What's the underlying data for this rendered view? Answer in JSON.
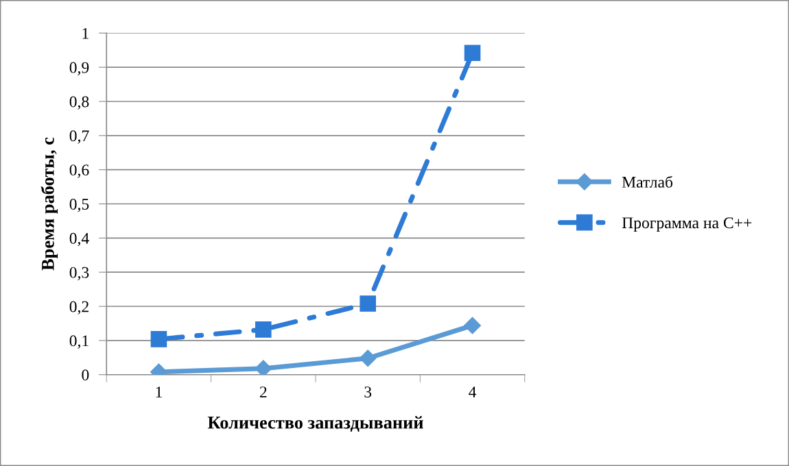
{
  "chart_data": {
    "type": "line",
    "xlabel": "Количество запаздываний",
    "ylabel": "Время работы, с",
    "categories": [
      "1",
      "2",
      "3",
      "4"
    ],
    "series": [
      {
        "name": "Матлаб",
        "color": "#5b9bd5",
        "values": [
          0.008,
          0.018,
          0.048,
          0.144
        ],
        "marker": "diamond",
        "line_style": "solid"
      },
      {
        "name": "Программа на С++",
        "color": "#2e7bd6",
        "values": [
          0.104,
          0.132,
          0.208,
          0.942
        ],
        "marker": "square",
        "line_style": "dashdot"
      }
    ],
    "ylim": [
      0,
      1
    ],
    "yticks": [
      0,
      {
        "value": 0.1,
        "label": "0,1"
      },
      {
        "value": 0.2,
        "label": "0,2"
      },
      {
        "value": 0.3,
        "label": "0,3"
      },
      {
        "value": 0.4,
        "label": "0,4"
      },
      {
        "value": 0.5,
        "label": "0,5"
      },
      {
        "value": 0.6,
        "label": "0,6"
      },
      {
        "value": 0.7,
        "label": "0,7"
      },
      {
        "value": 0.8,
        "label": "0,8"
      },
      {
        "value": 0.9,
        "label": "0,9"
      },
      1
    ],
    "grid": "y",
    "legend": "right"
  }
}
